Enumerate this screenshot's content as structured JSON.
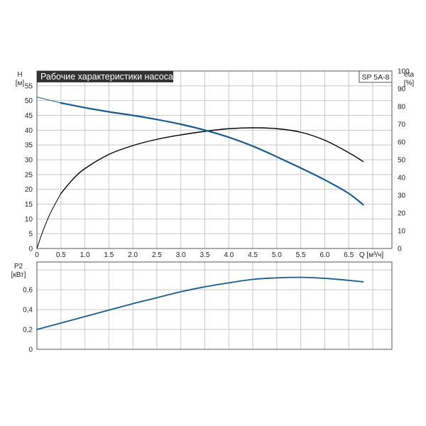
{
  "title": "Рабочие характеристики насоса",
  "model": "SP 5A-8",
  "colors": {
    "head": "#1d5a8c",
    "efficiency": "#000000",
    "power": "#1d5a8c",
    "title_bg": "#333333",
    "grid": "#c8c8c8"
  },
  "chart_data": [
    {
      "type": "line",
      "panel": "head-efficiency",
      "xlabel": "Q [м³/ч]",
      "x_ticks": [
        "0",
        "0.5",
        "1.0",
        "1.5",
        "2.0",
        "2.5",
        "3.0",
        "3.5",
        "4.0",
        "4.5",
        "5.0",
        "5.5",
        "6.0",
        "6.5"
      ],
      "xlim": [
        0,
        7.4
      ],
      "y_left": {
        "label": [
          "H",
          "[м]"
        ],
        "ylim": [
          0,
          60
        ],
        "ticks": [
          "0",
          "5",
          "10",
          "15",
          "20",
          "25",
          "30",
          "35",
          "40",
          "45",
          "50",
          "55"
        ]
      },
      "y_right": {
        "label": [
          "eta",
          "[%]"
        ],
        "ylim": [
          0,
          100
        ],
        "ticks": [
          "0",
          "10",
          "20",
          "30",
          "40",
          "50",
          "60",
          "70",
          "80",
          "90",
          "100"
        ]
      },
      "grid": true,
      "series": [
        {
          "axis": "left",
          "thin_until": 0.5,
          "points": [
            [
              0,
              51.2
            ],
            [
              0.5,
              49.2
            ],
            [
              1.0,
              47.6
            ],
            [
              1.5,
              46.2
            ],
            [
              2.0,
              45.0
            ],
            [
              2.5,
              43.6
            ],
            [
              3.0,
              42.0
            ],
            [
              3.5,
              40.0
            ],
            [
              4.0,
              37.6
            ],
            [
              4.5,
              34.6
            ],
            [
              5.0,
              31.0
            ],
            [
              5.5,
              27.2
            ],
            [
              6.0,
              23.2
            ],
            [
              6.5,
              18.6
            ],
            [
              6.8,
              14.8
            ]
          ]
        },
        {
          "axis": "right",
          "thin_until": 0.5,
          "points": [
            [
              0,
              0
            ],
            [
              0.1,
              8
            ],
            [
              0.2,
              15
            ],
            [
              0.3,
              21
            ],
            [
              0.5,
              31
            ],
            [
              0.75,
              39
            ],
            [
              1.0,
              45
            ],
            [
              1.5,
              53
            ],
            [
              2.0,
              58
            ],
            [
              2.5,
              61.5
            ],
            [
              3.0,
              64
            ],
            [
              3.5,
              66
            ],
            [
              4.0,
              67.5
            ],
            [
              4.5,
              68
            ],
            [
              5.0,
              67.5
            ],
            [
              5.5,
              65.5
            ],
            [
              6.0,
              61
            ],
            [
              6.5,
              54
            ],
            [
              6.8,
              49
            ]
          ]
        }
      ]
    },
    {
      "type": "line",
      "panel": "power",
      "y_left": {
        "label": [
          "P2",
          "[кВт]"
        ],
        "ylim": [
          0,
          0.88
        ],
        "ticks": [
          "0",
          "0,2",
          "0,4",
          "0,6"
        ]
      },
      "grid": true,
      "series": [
        {
          "axis": "left",
          "thin_until": 0,
          "points": [
            [
              0,
              0.2
            ],
            [
              0.5,
              0.265
            ],
            [
              1.0,
              0.33
            ],
            [
              1.5,
              0.395
            ],
            [
              2.0,
              0.46
            ],
            [
              2.5,
              0.52
            ],
            [
              3.0,
              0.58
            ],
            [
              3.5,
              0.63
            ],
            [
              4.0,
              0.67
            ],
            [
              4.5,
              0.705
            ],
            [
              5.0,
              0.72
            ],
            [
              5.5,
              0.725
            ],
            [
              6.0,
              0.715
            ],
            [
              6.5,
              0.695
            ],
            [
              6.8,
              0.68
            ]
          ]
        }
      ]
    }
  ]
}
